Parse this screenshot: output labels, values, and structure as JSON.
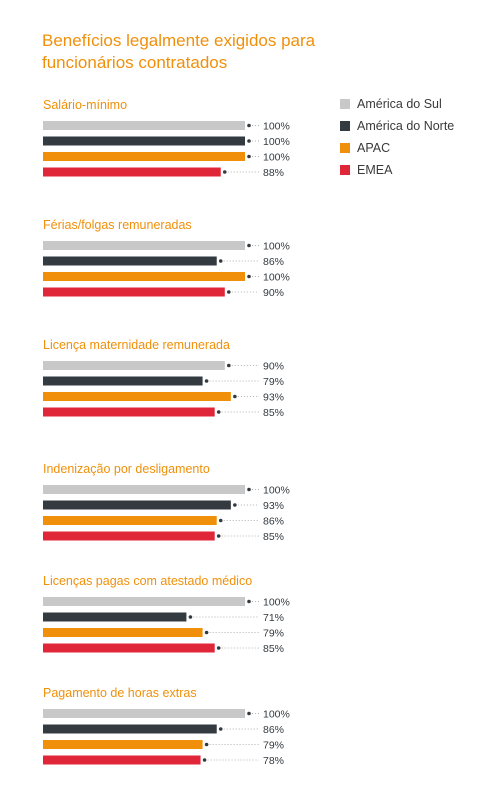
{
  "chart_data": {
    "type": "bar",
    "orientation": "horizontal",
    "title": "Benefícios legalmente exigidos para funcionários contratados",
    "xlim": [
      0,
      100
    ],
    "grid": false,
    "legend_position": "top-right",
    "unit": "%",
    "series": [
      {
        "name": "América do Sul",
        "color": "#c8c8c8"
      },
      {
        "name": "América do Norte",
        "color": "#333a40"
      },
      {
        "name": "APAC",
        "color": "#f0900a"
      },
      {
        "name": "EMEA",
        "color": "#e0273a"
      }
    ],
    "groups": [
      {
        "label": "Salário-mínimo",
        "values": [
          100,
          100,
          100,
          88
        ]
      },
      {
        "label": "Férias/folgas remuneradas",
        "values": [
          100,
          86,
          100,
          90
        ]
      },
      {
        "label": "Licença maternidade remunerada",
        "values": [
          90,
          79,
          93,
          85
        ]
      },
      {
        "label": "Indenização por desligamento",
        "values": [
          100,
          93,
          86,
          85
        ]
      },
      {
        "label": "Licenças pagas com atestado médico",
        "values": [
          100,
          71,
          79,
          85
        ]
      },
      {
        "label": "Pagamento de horas extras",
        "values": [
          100,
          86,
          79,
          78
        ]
      }
    ]
  }
}
